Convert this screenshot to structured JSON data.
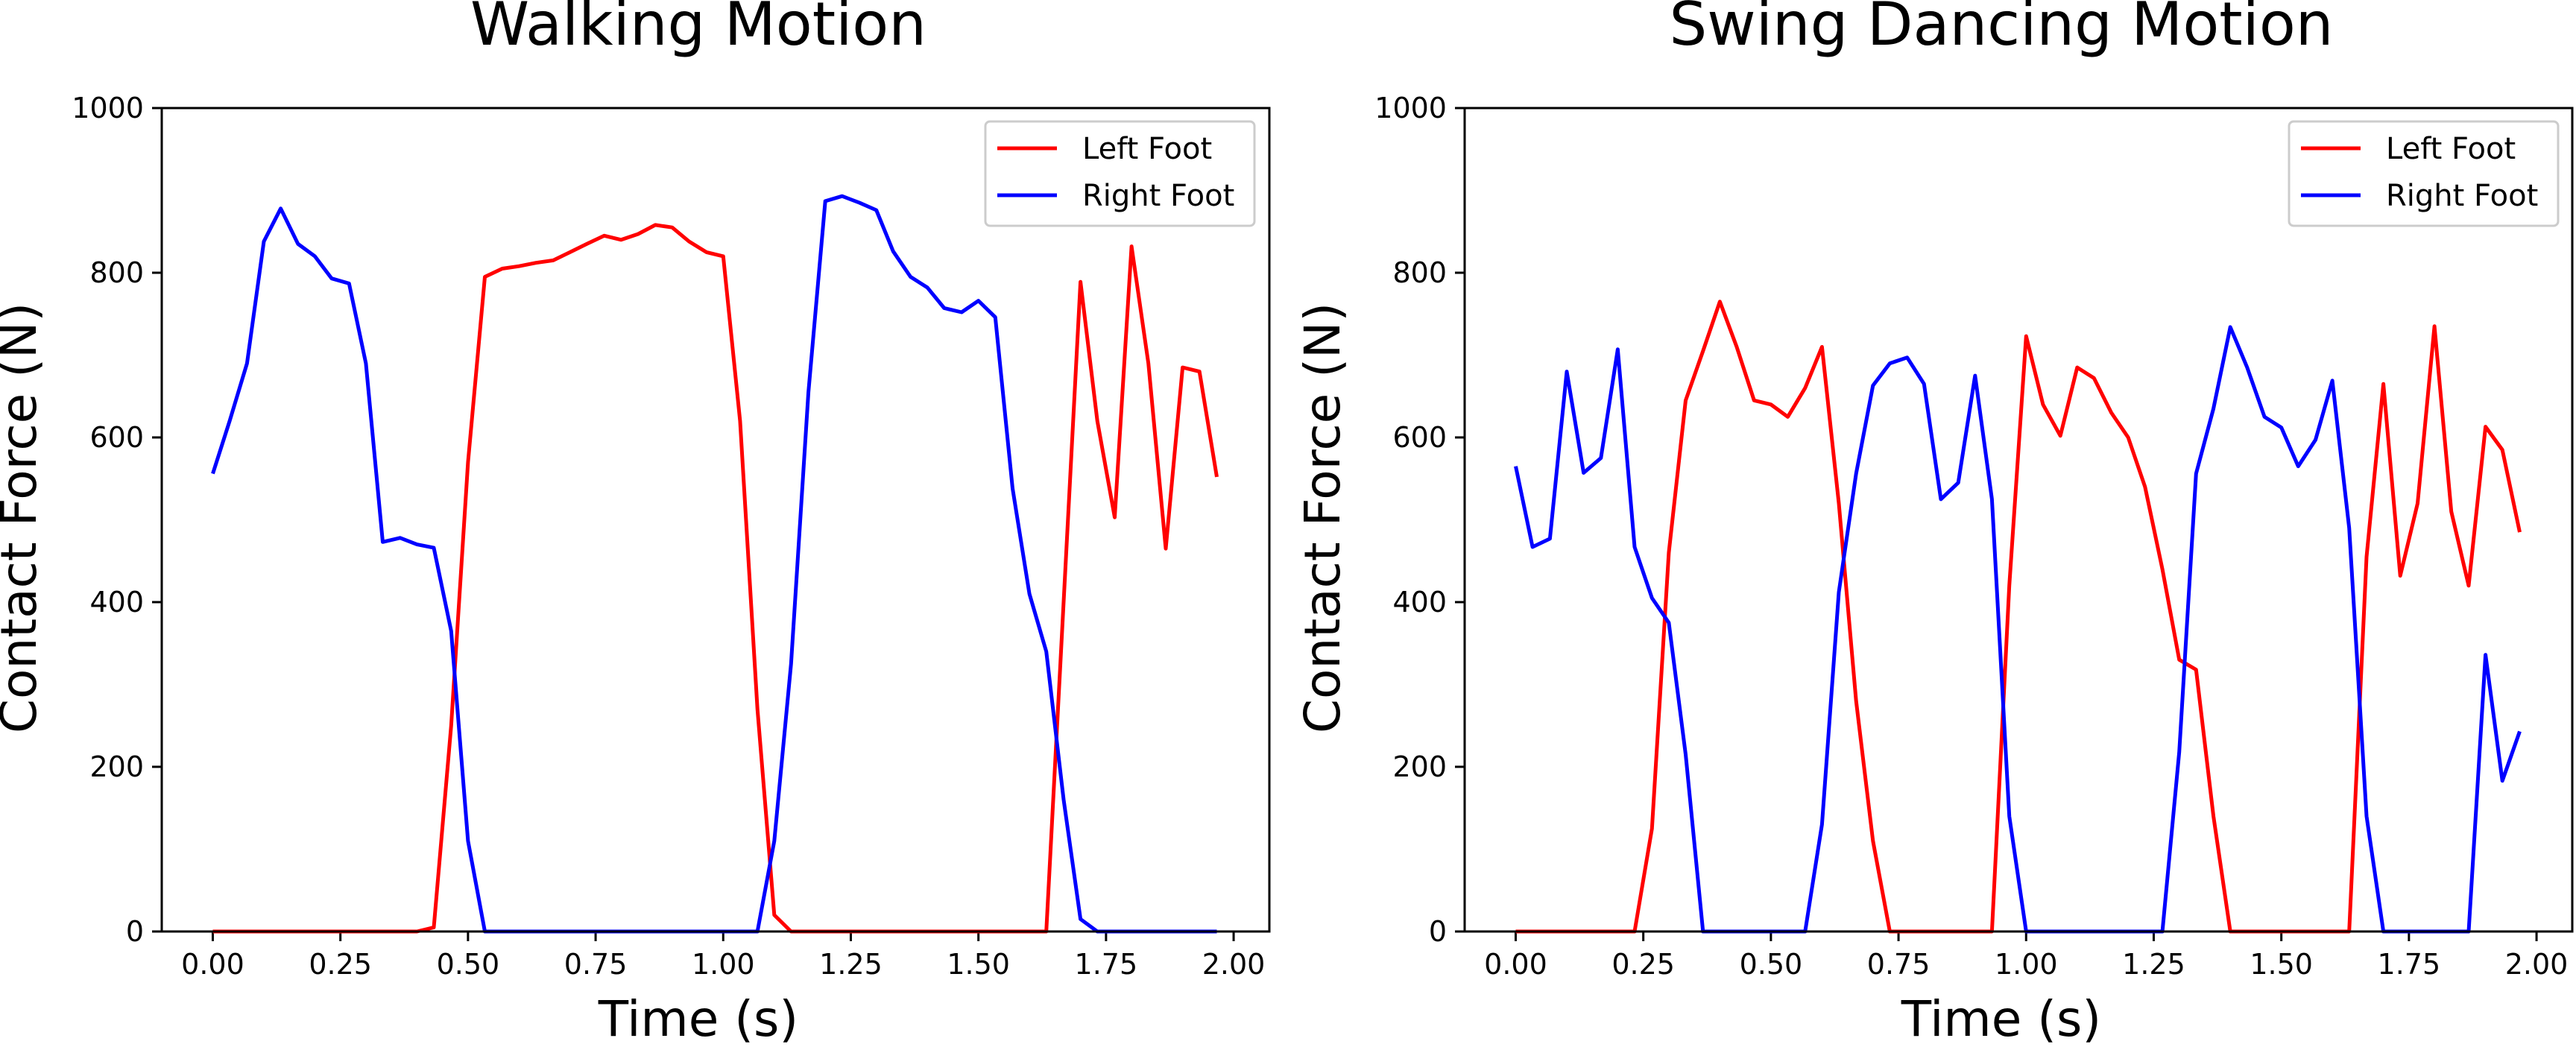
{
  "chart_data": [
    {
      "type": "line",
      "title": "Walking Motion",
      "xlabel": "Time (s)",
      "ylabel": "Contact Force (N)",
      "xlim": [
        -0.1,
        2.07
      ],
      "ylim": [
        0,
        1000
      ],
      "xticks": [
        "0.00",
        "0.25",
        "0.50",
        "0.75",
        "1.00",
        "1.25",
        "1.50",
        "1.75",
        "2.00"
      ],
      "yticks": [
        "0",
        "200",
        "400",
        "600",
        "800",
        "1000"
      ],
      "grid": false,
      "legend_position": "top-right",
      "series": [
        {
          "name": "Left Foot",
          "color": "#ff0000",
          "x": [
            0.0,
            0.1,
            0.2,
            0.3,
            0.4,
            0.433,
            0.467,
            0.5,
            0.533,
            0.567,
            0.6,
            0.633,
            0.667,
            0.7,
            0.733,
            0.767,
            0.8,
            0.833,
            0.867,
            0.9,
            0.933,
            0.967,
            1.0,
            1.033,
            1.067,
            1.1,
            1.133,
            1.2,
            1.4,
            1.6,
            1.633,
            1.7,
            1.733,
            1.767,
            1.8,
            1.833,
            1.867,
            1.9,
            1.933,
            1.967
          ],
          "y": [
            0,
            0,
            0,
            0,
            0,
            5,
            250,
            570,
            795,
            805,
            808,
            812,
            815,
            825,
            835,
            845,
            840,
            847,
            858,
            855,
            838,
            825,
            820,
            620,
            270,
            20,
            0,
            0,
            0,
            0,
            0,
            789,
            620,
            503,
            832,
            690,
            465,
            685,
            680,
            552
          ]
        },
        {
          "name": "Right Foot",
          "color": "#0000ff",
          "x": [
            0.0,
            0.033,
            0.067,
            0.1,
            0.133,
            0.167,
            0.2,
            0.233,
            0.267,
            0.3,
            0.333,
            0.367,
            0.4,
            0.433,
            0.467,
            0.5,
            0.533,
            0.6,
            0.8,
            1.0,
            1.067,
            1.1,
            1.133,
            1.167,
            1.2,
            1.233,
            1.267,
            1.3,
            1.333,
            1.367,
            1.4,
            1.433,
            1.467,
            1.5,
            1.533,
            1.567,
            1.6,
            1.633,
            1.667,
            1.7,
            1.733,
            1.8,
            1.9,
            1.967
          ],
          "y": [
            556,
            620,
            690,
            838,
            878,
            835,
            820,
            793,
            787,
            690,
            473,
            478,
            470,
            466,
            365,
            110,
            0,
            0,
            0,
            0,
            0,
            110,
            325,
            655,
            887,
            893,
            885,
            876,
            826,
            795,
            782,
            757,
            752,
            766,
            746,
            538,
            410,
            340,
            160,
            15,
            0,
            0,
            0,
            0
          ]
        }
      ]
    },
    {
      "type": "line",
      "title": "Swing Dancing Motion",
      "xlabel": "Time (s)",
      "ylabel": "Contact Force (N)",
      "xlim": [
        -0.1,
        2.07
      ],
      "ylim": [
        0,
        1000
      ],
      "xticks": [
        "0.00",
        "0.25",
        "0.50",
        "0.75",
        "1.00",
        "1.25",
        "1.50",
        "1.75",
        "2.00"
      ],
      "yticks": [
        "0",
        "200",
        "400",
        "600",
        "800",
        "1000"
      ],
      "grid": false,
      "legend_position": "top-right",
      "series": [
        {
          "name": "Left Foot",
          "color": "#ff0000",
          "x": [
            0.0,
            0.1,
            0.2,
            0.233,
            0.267,
            0.3,
            0.333,
            0.367,
            0.4,
            0.433,
            0.467,
            0.5,
            0.533,
            0.567,
            0.6,
            0.633,
            0.667,
            0.7,
            0.733,
            0.8,
            0.933,
            0.967,
            1.0,
            1.033,
            1.067,
            1.1,
            1.133,
            1.167,
            1.2,
            1.233,
            1.267,
            1.3,
            1.333,
            1.367,
            1.4,
            1.5,
            1.633,
            1.667,
            1.7,
            1.733,
            1.767,
            1.8,
            1.833,
            1.867,
            1.9,
            1.933,
            1.967
          ],
          "y": [
            0,
            0,
            0,
            0,
            125,
            460,
            645,
            705,
            765,
            710,
            645,
            640,
            625,
            660,
            710,
            520,
            280,
            110,
            0,
            0,
            0,
            420,
            723,
            640,
            602,
            685,
            672,
            630,
            600,
            540,
            440,
            330,
            318,
            140,
            0,
            0,
            0,
            455,
            665,
            432,
            520,
            735,
            510,
            420,
            613,
            585,
            485
          ]
        },
        {
          "name": "Right Foot",
          "color": "#0000ff",
          "x": [
            0.0,
            0.033,
            0.067,
            0.1,
            0.133,
            0.167,
            0.2,
            0.233,
            0.267,
            0.3,
            0.333,
            0.367,
            0.4,
            0.5,
            0.567,
            0.6,
            0.633,
            0.667,
            0.7,
            0.733,
            0.767,
            0.8,
            0.833,
            0.867,
            0.9,
            0.933,
            0.967,
            1.0,
            1.1,
            1.267,
            1.3,
            1.333,
            1.367,
            1.4,
            1.433,
            1.467,
            1.5,
            1.533,
            1.567,
            1.6,
            1.633,
            1.667,
            1.7,
            1.8,
            1.867,
            1.9,
            1.933,
            1.967
          ],
          "y": [
            565,
            467,
            477,
            680,
            557,
            575,
            707,
            467,
            405,
            375,
            215,
            0,
            0,
            0,
            0,
            130,
            412,
            556,
            663,
            690,
            697,
            665,
            525,
            545,
            675,
            525,
            140,
            0,
            0,
            0,
            218,
            556,
            635,
            734,
            685,
            625,
            612,
            565,
            597,
            669,
            490,
            140,
            0,
            0,
            0,
            336,
            183,
            243
          ]
        }
      ]
    }
  ]
}
